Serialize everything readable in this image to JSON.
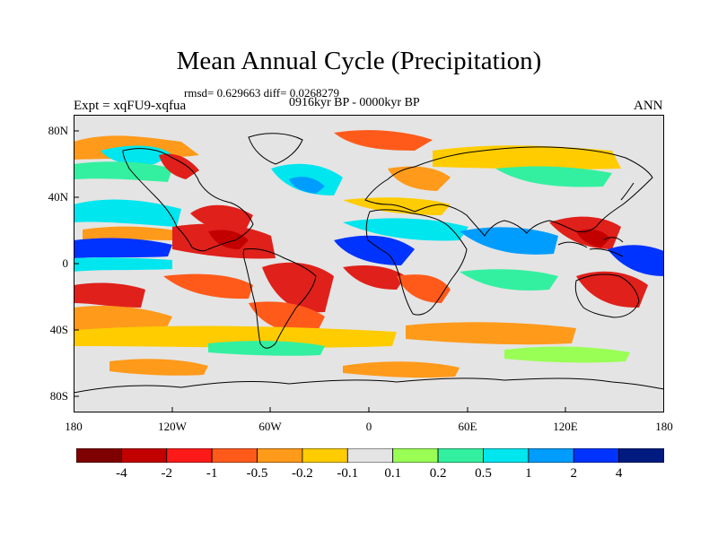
{
  "title": "Mean Annual Cycle (Precipitation)",
  "stats": "rmsd= 0.629663  diff= 0.0268279",
  "period": "0916kyr BP - 0000kyr BP",
  "experiment": "Expt = xqFU9-xqfua",
  "season": "ANN",
  "lat_ticks": [
    "80N",
    "40N",
    "0",
    "40S",
    "80S"
  ],
  "lon_ticks": [
    "180",
    "120W",
    "60W",
    "0",
    "60E",
    "120E",
    "180"
  ],
  "colorbar": {
    "labels": [
      "-4",
      "-2",
      "-1",
      "-0.5",
      "-0.2",
      "-0.1",
      "0.1",
      "0.2",
      "0.5",
      "1",
      "2",
      "4"
    ],
    "colors": [
      "#7f0000",
      "#c30000",
      "#ff1a1a",
      "#ff5a1a",
      "#ff9a1a",
      "#ffcc00",
      "#e4e4e4",
      "#99ff55",
      "#33f0a0",
      "#00e6ee",
      "#009dff",
      "#0033ff",
      "#001a80"
    ]
  },
  "field_colors": {
    "neutral": "#e4e4e4",
    "dry_strong": "#e0201a",
    "dry": "#ff5a1a",
    "dry_weak": "#ff9a1a",
    "dry_slight": "#ffcc00",
    "wet_slight": "#99ff55",
    "wet": "#33f0a0",
    "wet_strong": "#00e6ee",
    "wet_very": "#009dff",
    "wet_extreme": "#0033ff"
  }
}
